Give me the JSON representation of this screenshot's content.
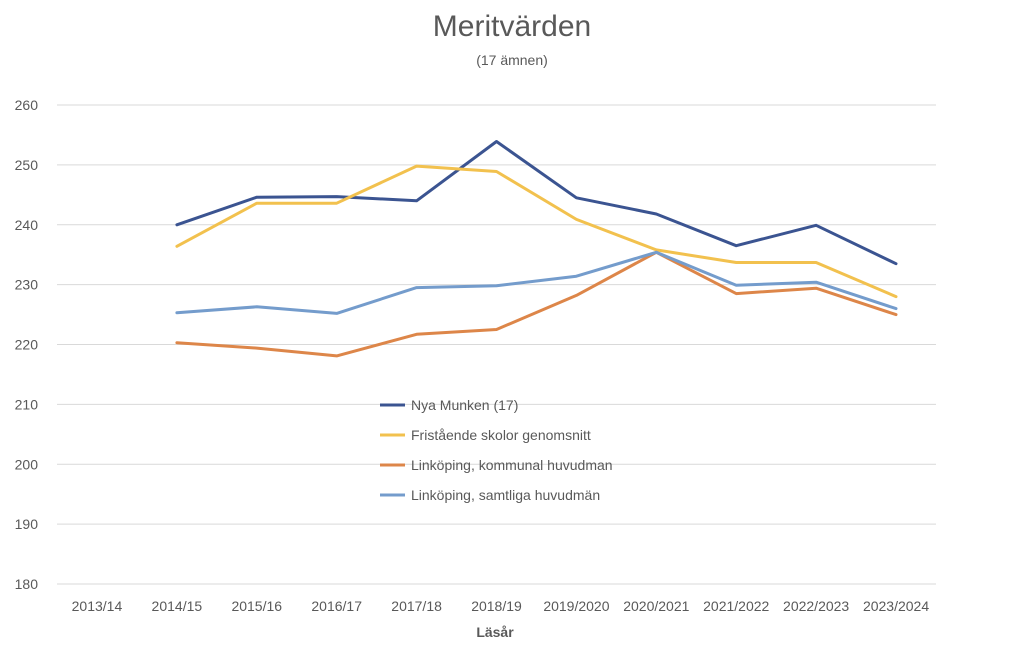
{
  "chart_data": {
    "type": "line",
    "title": "Meritvärden",
    "subtitle": "(17 ämnen)",
    "xlabel": "Läsår",
    "ylabel": "",
    "ylim": [
      180,
      260
    ],
    "yticks": [
      180,
      190,
      200,
      210,
      220,
      230,
      240,
      250,
      260
    ],
    "grid": true,
    "legend_position": "center",
    "categories": [
      "2013/14",
      "2014/15",
      "2015/16",
      "2016/17",
      "2017/18",
      "2018/19",
      "2019/2020",
      "2020/2021",
      "2021/2022",
      "2022/2023",
      "2023/2024"
    ],
    "series": [
      {
        "name": "Nya Munken (17)",
        "color": "#3b5491",
        "values": [
          null,
          240.0,
          244.6,
          244.7,
          244.0,
          253.9,
          244.5,
          241.8,
          236.5,
          239.9,
          233.5
        ]
      },
      {
        "name": "Fristående skolor genomsnitt",
        "color": "#f2c14e",
        "values": [
          null,
          236.4,
          243.6,
          243.6,
          249.8,
          248.9,
          240.9,
          235.8,
          233.7,
          233.7,
          228.0
        ]
      },
      {
        "name": "Linköping, kommunal huvudman",
        "color": "#dd8649",
        "values": [
          null,
          220.3,
          219.4,
          218.1,
          221.7,
          222.5,
          228.2,
          235.4,
          228.5,
          229.4,
          225.0
        ]
      },
      {
        "name": "Linköping, samtliga huvudmän",
        "color": "#749ccc",
        "values": [
          null,
          225.3,
          226.3,
          225.2,
          229.5,
          229.8,
          231.4,
          235.4,
          229.9,
          230.4,
          226.0
        ]
      }
    ]
  }
}
